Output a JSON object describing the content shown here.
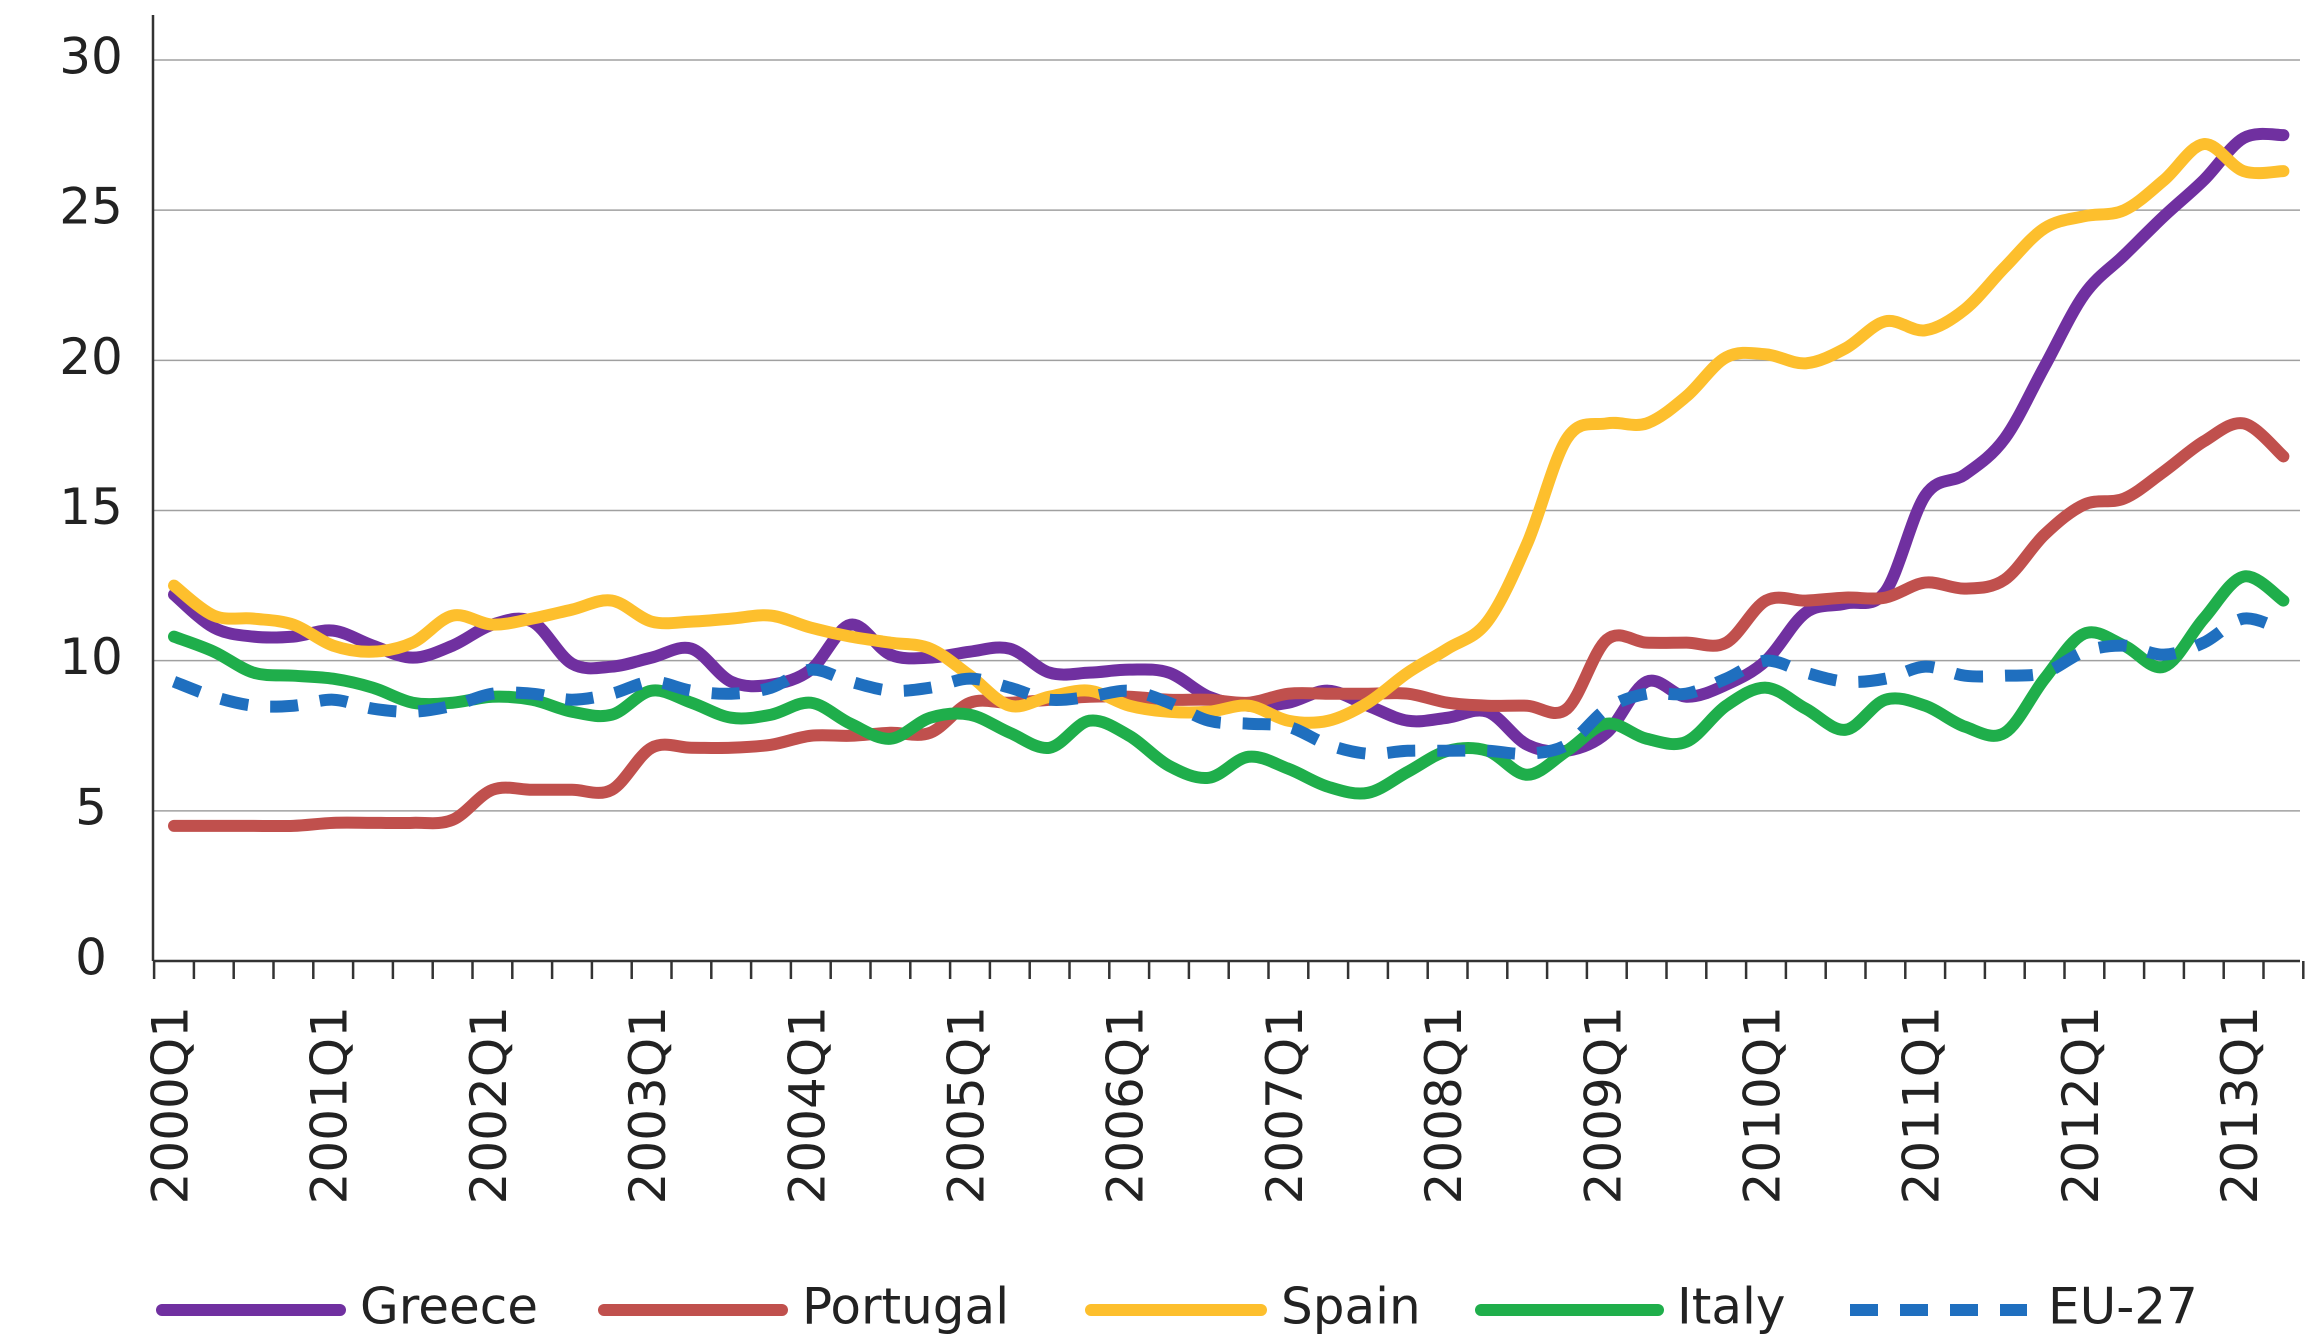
{
  "chart_data": {
    "type": "line",
    "categories": [
      "2000Q1",
      null,
      null,
      null,
      "2001Q1",
      null,
      null,
      null,
      "2002Q1",
      null,
      null,
      null,
      "2003Q1",
      null,
      null,
      null,
      "2004Q1",
      null,
      null,
      null,
      "2005Q1",
      null,
      null,
      null,
      "2006Q1",
      null,
      null,
      null,
      "2007Q1",
      null,
      null,
      null,
      "2008Q1",
      null,
      null,
      null,
      "2009Q1",
      null,
      null,
      null,
      "2010Q1",
      null,
      null,
      null,
      "2011Q1",
      null,
      null,
      null,
      "2012Q1",
      null,
      null,
      null,
      "2013Q1",
      null
    ],
    "series": [
      {
        "name": "Greece",
        "color": "#7030a0",
        "values": [
          12.2,
          11.1,
          10.8,
          10.8,
          11.0,
          10.5,
          10.1,
          10.5,
          11.2,
          11.3,
          9.9,
          9.8,
          10.1,
          10.4,
          9.3,
          9.2,
          9.7,
          11.2,
          10.2,
          10.1,
          10.3,
          10.4,
          9.6,
          9.6,
          9.7,
          9.6,
          8.8,
          8.5,
          8.6,
          9.0,
          8.5,
          8.0,
          8.1,
          8.3,
          7.2,
          7.0,
          7.6,
          9.3,
          8.8,
          9.2,
          10.0,
          11.6,
          11.9,
          12.3,
          15.5,
          16.2,
          17.4,
          19.8,
          22.2,
          23.5,
          24.8,
          26.0,
          27.4,
          27.5
        ]
      },
      {
        "name": "Portugal",
        "color": "#c0504d",
        "values": [
          4.5,
          4.5,
          4.5,
          4.5,
          4.6,
          4.6,
          4.6,
          4.7,
          5.7,
          5.7,
          5.7,
          5.7,
          7.1,
          7.1,
          7.1,
          7.2,
          7.5,
          7.5,
          7.6,
          7.6,
          8.6,
          8.6,
          8.7,
          8.8,
          8.8,
          8.7,
          8.7,
          8.6,
          8.9,
          8.9,
          8.9,
          8.9,
          8.6,
          8.5,
          8.5,
          8.4,
          10.7,
          10.6,
          10.6,
          10.6,
          12.0,
          12.0,
          12.1,
          12.1,
          12.6,
          12.4,
          12.7,
          14.2,
          15.2,
          15.4,
          16.3,
          17.3,
          17.9,
          16.8
        ]
      },
      {
        "name": "Spain",
        "color": "#fdbf2d",
        "values": [
          12.5,
          11.5,
          11.4,
          11.2,
          10.5,
          10.3,
          10.6,
          11.5,
          11.2,
          11.4,
          11.7,
          12.0,
          11.3,
          11.3,
          11.4,
          11.5,
          11.1,
          10.8,
          10.6,
          10.4,
          9.5,
          8.5,
          8.8,
          9.0,
          8.5,
          8.3,
          8.3,
          8.5,
          8.0,
          8.0,
          8.6,
          9.6,
          10.4,
          11.3,
          13.9,
          17.4,
          17.9,
          17.9,
          18.8,
          20.1,
          20.2,
          19.9,
          20.4,
          21.3,
          21.0,
          21.7,
          23.1,
          24.4,
          24.8,
          25.0,
          26.0,
          27.2,
          26.3,
          26.3
        ]
      },
      {
        "name": "Italy",
        "color": "#1fae4b",
        "values": [
          10.8,
          10.3,
          9.6,
          9.5,
          9.4,
          9.1,
          8.6,
          8.6,
          8.8,
          8.7,
          8.3,
          8.2,
          9.0,
          8.6,
          8.1,
          8.2,
          8.6,
          7.9,
          7.4,
          8.1,
          8.2,
          7.6,
          7.1,
          8.0,
          7.5,
          6.5,
          6.1,
          6.8,
          6.4,
          5.8,
          5.6,
          6.3,
          7.0,
          7.0,
          6.2,
          7.0,
          7.9,
          7.4,
          7.3,
          8.5,
          9.1,
          8.4,
          7.7,
          8.7,
          8.5,
          7.8,
          7.6,
          9.4,
          10.9,
          10.5,
          9.8,
          11.4,
          12.8,
          12.0
        ]
      },
      {
        "name": "EU-27",
        "color": "#1f6fbf",
        "dashed": true,
        "values": [
          9.3,
          8.8,
          8.5,
          8.5,
          8.7,
          8.4,
          8.3,
          8.5,
          8.9,
          8.9,
          8.7,
          8.9,
          9.3,
          9.0,
          8.9,
          9.1,
          9.7,
          9.3,
          9.0,
          9.1,
          9.4,
          9.1,
          8.7,
          8.8,
          9.0,
          8.6,
          8.0,
          7.9,
          7.8,
          7.2,
          6.9,
          7.0,
          7.0,
          7.0,
          6.9,
          7.2,
          8.4,
          8.9,
          8.9,
          9.4,
          10.0,
          9.6,
          9.3,
          9.4,
          9.8,
          9.5,
          9.5,
          9.6,
          10.3,
          10.5,
          10.2,
          10.6,
          11.4,
          11.0
        ]
      }
    ],
    "ylim": [
      0,
      30
    ],
    "yticks": [
      0,
      5,
      10,
      15,
      20,
      25,
      30
    ],
    "grid": true,
    "legend": "bottom"
  }
}
